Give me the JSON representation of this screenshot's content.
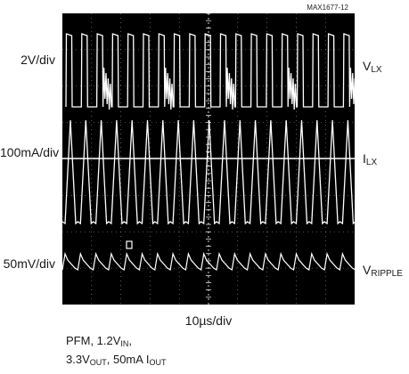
{
  "figure": {
    "title": "",
    "chart_id": "MAX1677-12",
    "x_scale": "10µs/div",
    "conditions": {
      "line1": [
        "PFM, 1.2V",
        "IN",
        ","
      ],
      "line2": [
        "3.3V",
        "OUT",
        ", 50mA I",
        "OUT"
      ]
    }
  },
  "chart_data": {
    "type": "line",
    "title": "",
    "xlabel": "10µs/div",
    "x_divisions": 10,
    "y_divisions": 8,
    "grid": true,
    "series": [
      {
        "name_parts": [
          "V",
          "LX"
        ],
        "scale": "2V/div",
        "waveform": "switching pulses"
      },
      {
        "name_parts": [
          "I",
          "LX"
        ],
        "scale": "100mA/div",
        "waveform": "triangular inductor current"
      },
      {
        "name_parts": [
          "V",
          "RIPPLE"
        ],
        "scale": "50mV/div",
        "waveform": "sawtooth ripple"
      }
    ],
    "colors": {
      "background": "#000000",
      "trace": "#ffffff",
      "grid": "#ffffff"
    }
  }
}
